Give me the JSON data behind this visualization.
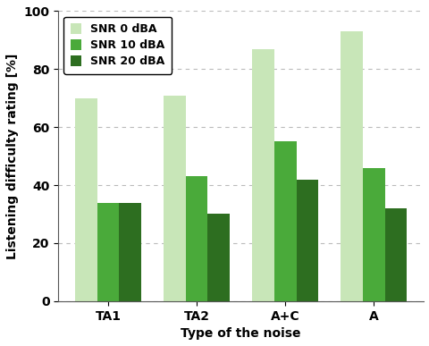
{
  "categories": [
    "TA1",
    "TA2",
    "A+C",
    "A"
  ],
  "series": [
    {
      "label": "SNR 0 dBA",
      "values": [
        70,
        71,
        87,
        93
      ],
      "color": "#c8e6b8"
    },
    {
      "label": "SNR 10 dBA",
      "values": [
        34,
        43,
        55,
        46
      ],
      "color": "#4aaa3a"
    },
    {
      "label": "SNR 20 dBA",
      "values": [
        34,
        30,
        42,
        32
      ],
      "color": "#2d6e20"
    }
  ],
  "ylabel": "Listening difficulty rating [%]",
  "xlabel": "Type of the noise",
  "ylim": [
    0,
    100
  ],
  "yticks": [
    0,
    20,
    40,
    60,
    80,
    100
  ],
  "grid_color": "#bbbbbb",
  "background_color": "#ffffff",
  "legend_loc": "upper left",
  "bar_width": 0.25,
  "figsize": [
    4.81,
    3.87
  ],
  "dpi": 100
}
